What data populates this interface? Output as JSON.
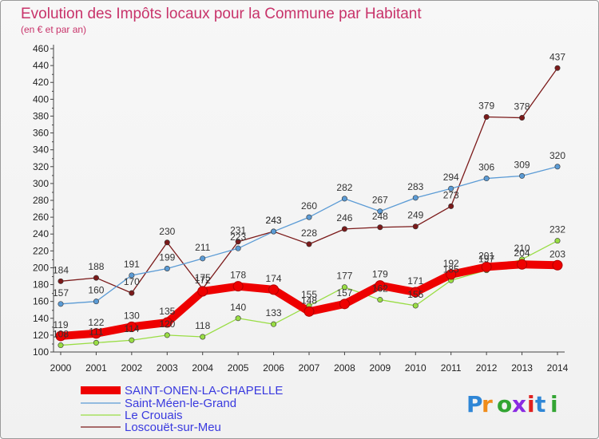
{
  "chart_data": {
    "type": "line",
    "title": "Evolution des Impôts locaux pour la Commune par Habitant",
    "subtitle": "(en € et par an)",
    "x": [
      "2000",
      "2001",
      "2002",
      "2003",
      "2004",
      "2005",
      "2006",
      "2007",
      "2008",
      "2009",
      "2010",
      "2011",
      "2012",
      "2013",
      "2014"
    ],
    "ylim": [
      100,
      460
    ],
    "yticks": [
      100,
      120,
      140,
      160,
      180,
      200,
      220,
      240,
      260,
      280,
      300,
      320,
      340,
      360,
      380,
      400,
      420,
      440,
      460
    ],
    "grid": false,
    "legend_position": "bottom-left",
    "series": [
      {
        "name": "SAINT-ONEN-LA-CHAPELLE",
        "color": "#ee0000",
        "values": [
          119,
          122,
          130,
          135,
          172,
          178,
          174,
          148,
          157,
          179,
          171,
          192,
          201,
          204,
          203
        ],
        "labels": [
          "119",
          "122",
          "130",
          "135",
          "172",
          "178",
          "174",
          "148",
          "157",
          "179",
          "171",
          "192",
          "201",
          "204",
          "203"
        ]
      },
      {
        "name": "Saint-Méen-le-Grand",
        "color": "#5b9bd5",
        "values": [
          157,
          160,
          191,
          199,
          211,
          223,
          243,
          260,
          282,
          267,
          283,
          294,
          306,
          309,
          320
        ],
        "labels": [
          "157",
          "160",
          "191",
          "199",
          "211",
          "223",
          "243",
          "260",
          "282",
          "267",
          "283",
          "294",
          "306",
          "309",
          "320"
        ]
      },
      {
        "name": "Le Crouais",
        "color": "#99dd44",
        "values": [
          108,
          111,
          114,
          120,
          118,
          140,
          133,
          155,
          177,
          162,
          155,
          185,
          197,
          210,
          232
        ],
        "labels": [
          "108",
          "111",
          "114",
          "120",
          "118",
          "140",
          "133",
          "155",
          "177",
          "162",
          "155",
          "185",
          "197",
          "210",
          "232"
        ]
      },
      {
        "name": "Loscouët-sur-Meu",
        "color": "#7b1a1a",
        "values": [
          184,
          188,
          170,
          230,
          175,
          231,
          243,
          228,
          246,
          248,
          249,
          273,
          379,
          378,
          437
        ],
        "labels": [
          "184",
          "188",
          "170",
          "230",
          "175",
          "231",
          "243",
          "228",
          "246",
          "248",
          "249",
          "273",
          "379",
          "378",
          "437"
        ]
      }
    ]
  },
  "logo": {
    "text": "Proxiti"
  }
}
